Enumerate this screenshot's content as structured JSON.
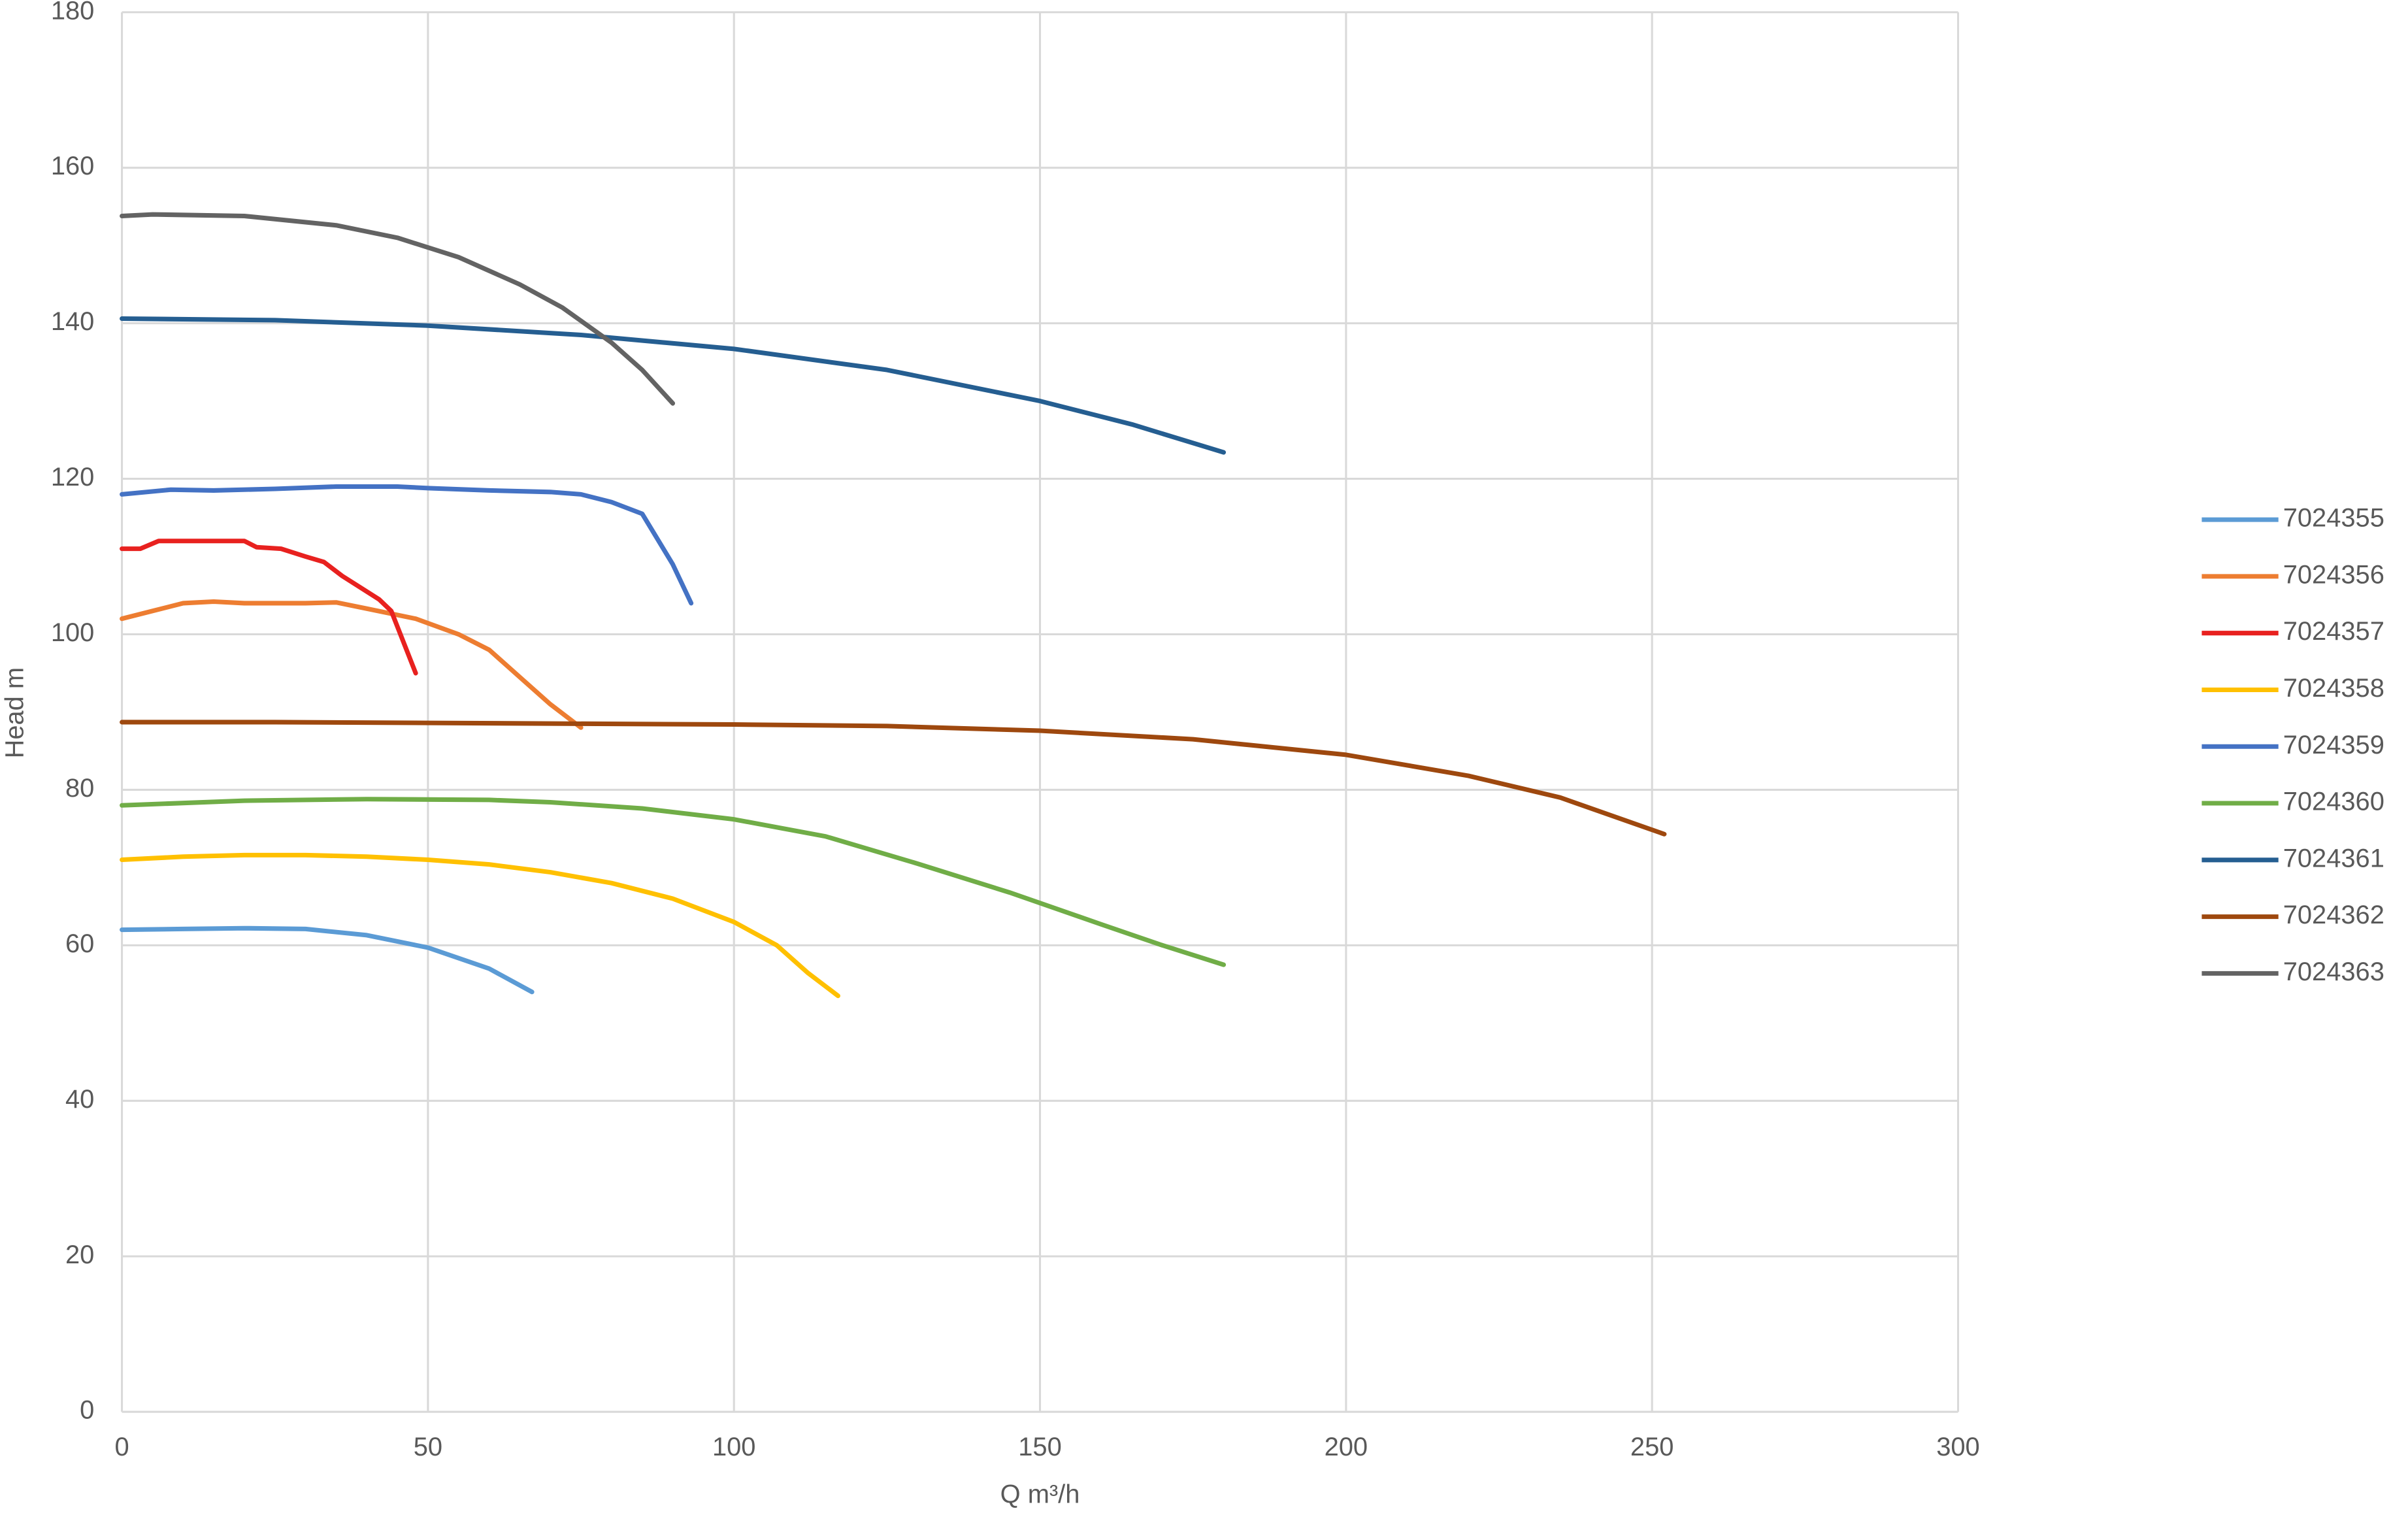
{
  "chart_data": {
    "type": "line",
    "xlabel": "Q m³/h",
    "ylabel": "Head m",
    "xlim": [
      0,
      300
    ],
    "xticks": [
      0,
      50,
      100,
      150,
      200,
      250,
      300
    ],
    "ylim": [
      0,
      180
    ],
    "yticks": [
      0,
      20,
      40,
      60,
      80,
      100,
      120,
      140,
      160,
      180
    ],
    "grid": true,
    "legend": "right",
    "series": [
      {
        "name": "7024355",
        "color": "#5b9bd5",
        "x": [
          0,
          10,
          20,
          30,
          40,
          50,
          60,
          67
        ],
        "values": [
          62,
          62.1,
          62.2,
          62.1,
          61.3,
          59.7,
          57,
          54
        ]
      },
      {
        "name": "7024356",
        "color": "#ed7d31",
        "x": [
          0,
          5,
          10,
          15,
          20,
          30,
          35,
          40,
          48,
          55,
          60,
          65,
          70,
          75
        ],
        "values": [
          102,
          103,
          104,
          104.2,
          104,
          104,
          104.1,
          103.3,
          102,
          100,
          98,
          94.5,
          91,
          88
        ]
      },
      {
        "name": "7024357",
        "color": "#e8211f",
        "x": [
          0,
          3,
          6,
          10,
          20,
          22,
          26,
          30,
          33,
          36,
          42,
          44,
          48
        ],
        "values": [
          111,
          111,
          112,
          112,
          112,
          111.2,
          111,
          110,
          109.3,
          107.5,
          104.5,
          103,
          95
        ]
      },
      {
        "name": "7024358",
        "color": "#ffc000",
        "x": [
          0,
          10,
          20,
          30,
          40,
          50,
          60,
          70,
          80,
          90,
          100,
          107,
          112,
          117
        ],
        "values": [
          71,
          71.4,
          71.6,
          71.6,
          71.4,
          71,
          70.4,
          69.4,
          68,
          66,
          63,
          60,
          56.5,
          53.5
        ]
      },
      {
        "name": "7024359",
        "color": "#4472c4",
        "x": [
          0,
          8,
          15,
          25,
          35,
          45,
          50,
          60,
          70,
          75,
          80,
          85,
          90,
          93
        ],
        "values": [
          118,
          118.6,
          118.5,
          118.7,
          119,
          119,
          118.8,
          118.5,
          118.3,
          118,
          117,
          115.5,
          109,
          104
        ]
      },
      {
        "name": "7024360",
        "color": "#70ad47",
        "x": [
          0,
          20,
          40,
          60,
          70,
          85,
          100,
          115,
          130,
          145,
          160,
          170,
          180
        ],
        "values": [
          78,
          78.6,
          78.8,
          78.7,
          78.4,
          77.6,
          76.2,
          74,
          70.5,
          66.8,
          62.7,
          60,
          57.5
        ]
      },
      {
        "name": "7024361",
        "color": "#255e91",
        "x": [
          0,
          25,
          50,
          75,
          100,
          125,
          150,
          165,
          180
        ],
        "values": [
          140.6,
          140.4,
          139.7,
          138.5,
          136.7,
          134,
          130,
          127,
          123.4
        ]
      },
      {
        "name": "7024362",
        "color": "#9e480e",
        "x": [
          0,
          25,
          50,
          100,
          125,
          150,
          175,
          200,
          220,
          235,
          252
        ],
        "values": [
          88.7,
          88.7,
          88.6,
          88.4,
          88.2,
          87.6,
          86.5,
          84.5,
          81.8,
          79,
          74.3
        ]
      },
      {
        "name": "7024363",
        "color": "#636363",
        "x": [
          0,
          5,
          20,
          35,
          45,
          55,
          65,
          72,
          80,
          85,
          90
        ],
        "values": [
          153.8,
          154,
          153.8,
          152.6,
          151,
          148.5,
          145,
          142,
          137.5,
          134,
          129.7
        ]
      }
    ]
  }
}
